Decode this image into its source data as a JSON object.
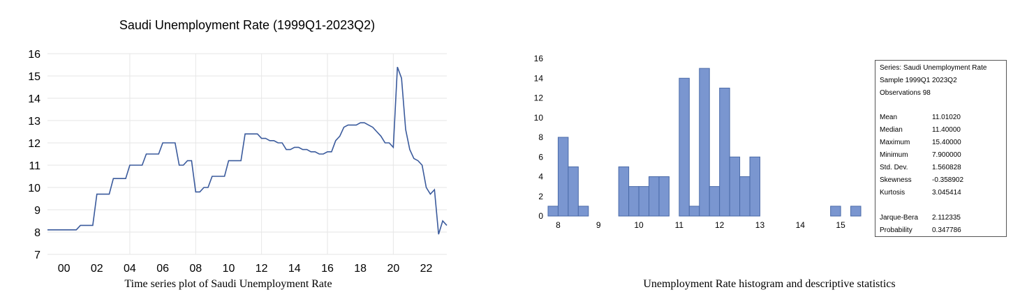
{
  "left_chart": {
    "title": "Saudi Unemployment Rate (1999Q1-2023Q2)",
    "caption": "Time series plot of Saudi Unemployment Rate",
    "line_color": "#3a5a9c"
  },
  "right_chart": {
    "caption": "Unemployment Rate histogram and descriptive statistics",
    "bar_color": "#7a96d0",
    "bar_edge": "#4a6aa8"
  },
  "stats": {
    "header": [
      "Series: Saudi Unemployment Rate",
      "Sample 1999Q1 2023Q2",
      "Observations 98"
    ],
    "rows": [
      {
        "label": "Mean",
        "value": "11.01020"
      },
      {
        "label": "Median",
        "value": "11.40000"
      },
      {
        "label": "Maximum",
        "value": "15.40000"
      },
      {
        "label": "Minimum",
        "value": "7.900000"
      },
      {
        "label": "Std. Dev.",
        "value": "1.560828"
      },
      {
        "label": "Skewness",
        "value": "-0.358902"
      },
      {
        "label": "Kurtosis",
        "value": "3.045414"
      }
    ],
    "tests": [
      {
        "label": "Jarque-Bera",
        "value": "2.112335"
      },
      {
        "label": "Probability",
        "value": "0.347786"
      }
    ]
  },
  "chart_data": [
    {
      "type": "line",
      "title": "Saudi Unemployment Rate (1999Q1-2023Q2)",
      "xlabel": "",
      "ylabel": "",
      "ylim": [
        7,
        16
      ],
      "yticks": [
        7,
        8,
        9,
        10,
        11,
        12,
        13,
        14,
        15,
        16
      ],
      "xlim": [
        1999.0,
        2023.25
      ],
      "xtick_labels": [
        "00",
        "02",
        "04",
        "06",
        "08",
        "10",
        "12",
        "14",
        "16",
        "18",
        "20",
        "22"
      ],
      "x": [
        1999.0,
        2000.75,
        2001.0,
        2001.75,
        2002.0,
        2002.75,
        2003.0,
        2003.75,
        2004.0,
        2004.75,
        2005.0,
        2005.75,
        2006.0,
        2006.75,
        2007.0,
        2007.25,
        2007.5,
        2007.75,
        2008.0,
        2008.25,
        2008.5,
        2008.75,
        2009.0,
        2009.75,
        2010.0,
        2010.75,
        2011.0,
        2011.75,
        2012.0,
        2012.25,
        2012.5,
        2012.75,
        2013.0,
        2013.25,
        2013.5,
        2013.75,
        2014.0,
        2014.25,
        2014.5,
        2014.75,
        2015.0,
        2015.25,
        2015.5,
        2015.75,
        2016.0,
        2016.25,
        2016.5,
        2016.75,
        2017.0,
        2017.25,
        2017.5,
        2017.75,
        2018.0,
        2018.25,
        2018.5,
        2018.75,
        2019.0,
        2019.25,
        2019.5,
        2019.75,
        2020.0,
        2020.25,
        2020.5,
        2020.75,
        2021.0,
        2021.25,
        2021.5,
        2021.75,
        2022.0,
        2022.25,
        2022.5,
        2022.75,
        2023.0,
        2023.25
      ],
      "series": [
        {
          "values": [
            8.1,
            8.1,
            8.3,
            8.3,
            9.7,
            9.7,
            10.4,
            10.4,
            11.0,
            11.0,
            11.5,
            11.5,
            12.0,
            12.0,
            11.0,
            11.0,
            11.2,
            11.2,
            9.8,
            9.8,
            10.0,
            10.0,
            10.5,
            10.5,
            11.2,
            11.2,
            12.4,
            12.4,
            12.2,
            12.2,
            12.1,
            12.1,
            12.0,
            12.0,
            11.7,
            11.7,
            11.8,
            11.8,
            11.7,
            11.7,
            11.6,
            11.6,
            11.5,
            11.5,
            11.6,
            11.6,
            12.1,
            12.3,
            12.7,
            12.8,
            12.8,
            12.8,
            12.9,
            12.9,
            12.8,
            12.7,
            12.5,
            12.3,
            12.0,
            12.0,
            11.8,
            15.4,
            14.9,
            12.6,
            11.7,
            11.3,
            11.2,
            11.0,
            10.0,
            9.7,
            9.9,
            7.9,
            8.5,
            8.3
          ]
        }
      ]
    },
    {
      "type": "bar",
      "title": "",
      "xlabel": "",
      "ylabel": "",
      "ylim": [
        0,
        16
      ],
      "yticks": [
        0,
        2,
        4,
        6,
        8,
        10,
        12,
        14,
        16
      ],
      "xlim": [
        7.75,
        15.5
      ],
      "xticks": [
        8,
        9,
        10,
        11,
        12,
        13,
        14,
        15
      ],
      "bin_width": 0.25,
      "bin_starts": [
        7.75,
        8.0,
        8.25,
        8.5,
        8.75,
        9.0,
        9.25,
        9.5,
        9.75,
        10.0,
        10.25,
        10.5,
        10.75,
        11.0,
        11.25,
        11.5,
        11.75,
        12.0,
        12.25,
        12.5,
        12.75,
        13.0,
        13.25,
        13.5,
        13.75,
        14.0,
        14.25,
        14.5,
        14.75,
        15.0,
        15.25
      ],
      "values": [
        1,
        8,
        5,
        1,
        0,
        0,
        0,
        5,
        3,
        3,
        4,
        4,
        0,
        14,
        1,
        15,
        3,
        13,
        6,
        4,
        6,
        0,
        0,
        0,
        0,
        0,
        0,
        0,
        1,
        0,
        1
      ]
    }
  ]
}
